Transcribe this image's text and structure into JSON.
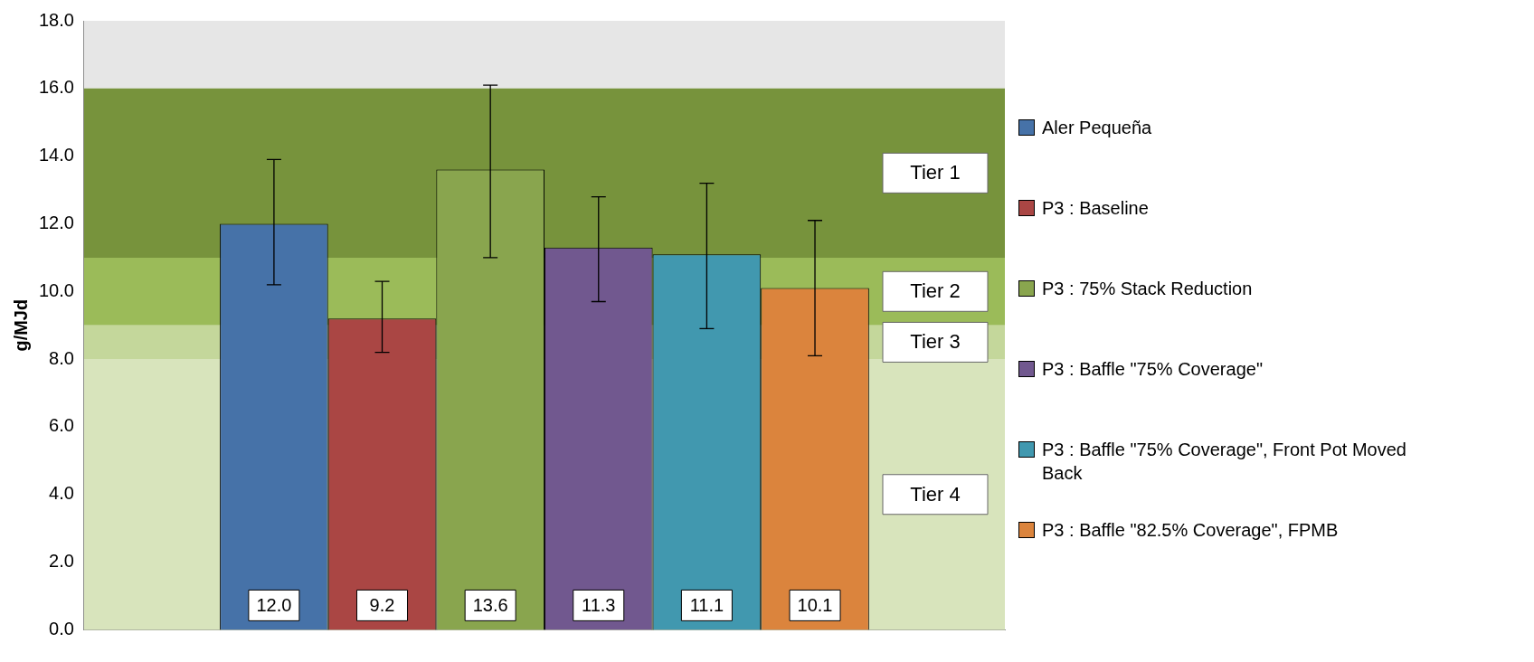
{
  "chart_data": {
    "type": "bar",
    "ylabel": "g/MJd",
    "categories": [
      null
    ],
    "series": [
      {
        "name": "Aler Pequeña",
        "color": "#4672a8",
        "values": [
          12.0
        ],
        "errors": [
          [
            10.2,
            13.9
          ]
        ],
        "value_labels": [
          "12.0"
        ]
      },
      {
        "name": "P3 : Baseline",
        "color": "#aa4644",
        "values": [
          9.2
        ],
        "errors": [
          [
            8.2,
            10.3
          ]
        ],
        "value_labels": [
          "9.2"
        ]
      },
      {
        "name": "P3 : 75% Stack Reduction",
        "color": "#89a54e",
        "values": [
          13.6
        ],
        "errors": [
          [
            11.0,
            16.1
          ]
        ],
        "value_labels": [
          "13.6"
        ]
      },
      {
        "name": "P3 : Baffle \"75% Coverage\"",
        "color": "#71588f",
        "values": [
          11.3
        ],
        "errors": [
          [
            9.7,
            12.8
          ]
        ],
        "value_labels": [
          "11.3"
        ]
      },
      {
        "name": "P3 : Baffle \"75% Coverage\", Front Pot Moved Back",
        "color": "#4198af",
        "values": [
          11.1
        ],
        "errors": [
          [
            8.9,
            13.2
          ]
        ],
        "value_labels": [
          "11.1"
        ]
      },
      {
        "name": "P3 : Baffle \"82.5% Coverage\", FPMB",
        "color": "#db843d",
        "values": [
          10.1
        ],
        "errors": [
          [
            8.1,
            12.1
          ]
        ],
        "value_labels": [
          "10.1"
        ]
      }
    ],
    "bands": [
      {
        "axis": "y",
        "from": 16,
        "to": 18,
        "label": null,
        "color": "#e6e6e6"
      },
      {
        "axis": "y",
        "from": 11,
        "to": 16,
        "label": "Tier 1",
        "color": "#77933c"
      },
      {
        "axis": "y",
        "from": 9,
        "to": 11,
        "label": "Tier 2",
        "color": "#9bbb59"
      },
      {
        "axis": "y",
        "from": 8,
        "to": 9,
        "label": "Tier 3",
        "color": "#c4d79b"
      },
      {
        "axis": "y",
        "from": 0,
        "to": 8,
        "label": "Tier 4",
        "color": "#d8e4bc"
      }
    ],
    "ylim": [
      0,
      18
    ],
    "yticks": [
      {
        "value": 0,
        "label": "0.0"
      },
      {
        "value": 2,
        "label": "2.0"
      },
      {
        "value": 4,
        "label": "4.0"
      },
      {
        "value": 6,
        "label": "6.0"
      },
      {
        "value": 8,
        "label": "8.0"
      },
      {
        "value": 10,
        "label": "10.0"
      },
      {
        "value": 12,
        "label": "12.0"
      },
      {
        "value": 14,
        "label": "14.0"
      },
      {
        "value": 16,
        "label": "16.0"
      },
      {
        "value": 18,
        "label": "18.0"
      }
    ],
    "grid": false,
    "legend": "right"
  }
}
